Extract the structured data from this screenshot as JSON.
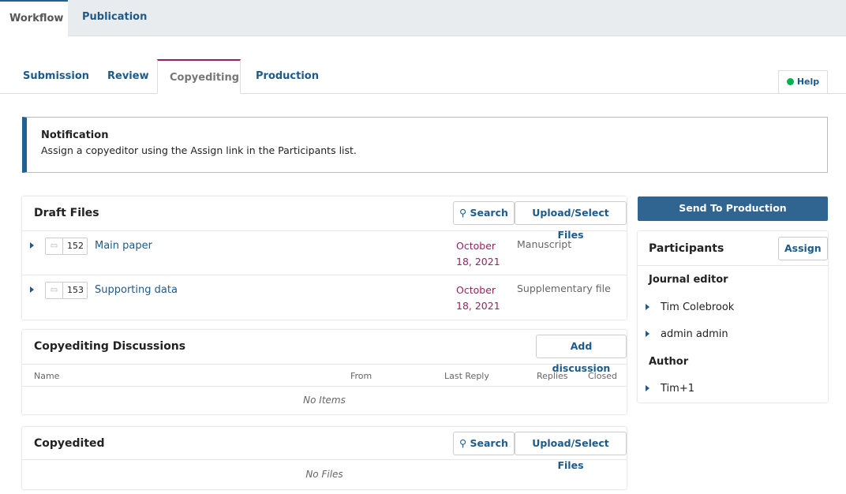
{
  "top_tabs": [
    "Workflow",
    "Publication"
  ],
  "stage_tabs": [
    "Submission",
    "Review",
    "Copyediting",
    "Production"
  ],
  "help": "Help",
  "notification": {
    "title": "Notification",
    "text": "Assign a copyeditor using the Assign link in the Participants list."
  },
  "draft_files": {
    "title": "Draft Files",
    "search": "Search",
    "upload": "Upload/Select Files",
    "files": [
      {
        "id": "152",
        "name": "Main paper",
        "date": "October 18, 2021",
        "type": "Manuscript"
      },
      {
        "id": "153",
        "name": "Supporting data",
        "date": "October 18, 2021",
        "type": "Supplementary file"
      }
    ]
  },
  "discussions": {
    "title": "Copyediting Discussions",
    "add": "Add discussion",
    "columns": [
      "Name",
      "From",
      "Last Reply",
      "Replies",
      "Closed"
    ],
    "empty": "No Items"
  },
  "copyedited": {
    "title": "Copyedited",
    "search": "Search",
    "upload": "Upload/Select Files",
    "empty": "No Files"
  },
  "send_to_production": "Send To Production",
  "participants": {
    "title": "Participants",
    "assign": "Assign",
    "groups": [
      {
        "name": "Journal editor",
        "people": [
          "Tim Colebrook",
          "admin admin"
        ]
      },
      {
        "name": "Author",
        "people": [
          "Tim+1"
        ]
      }
    ]
  }
}
